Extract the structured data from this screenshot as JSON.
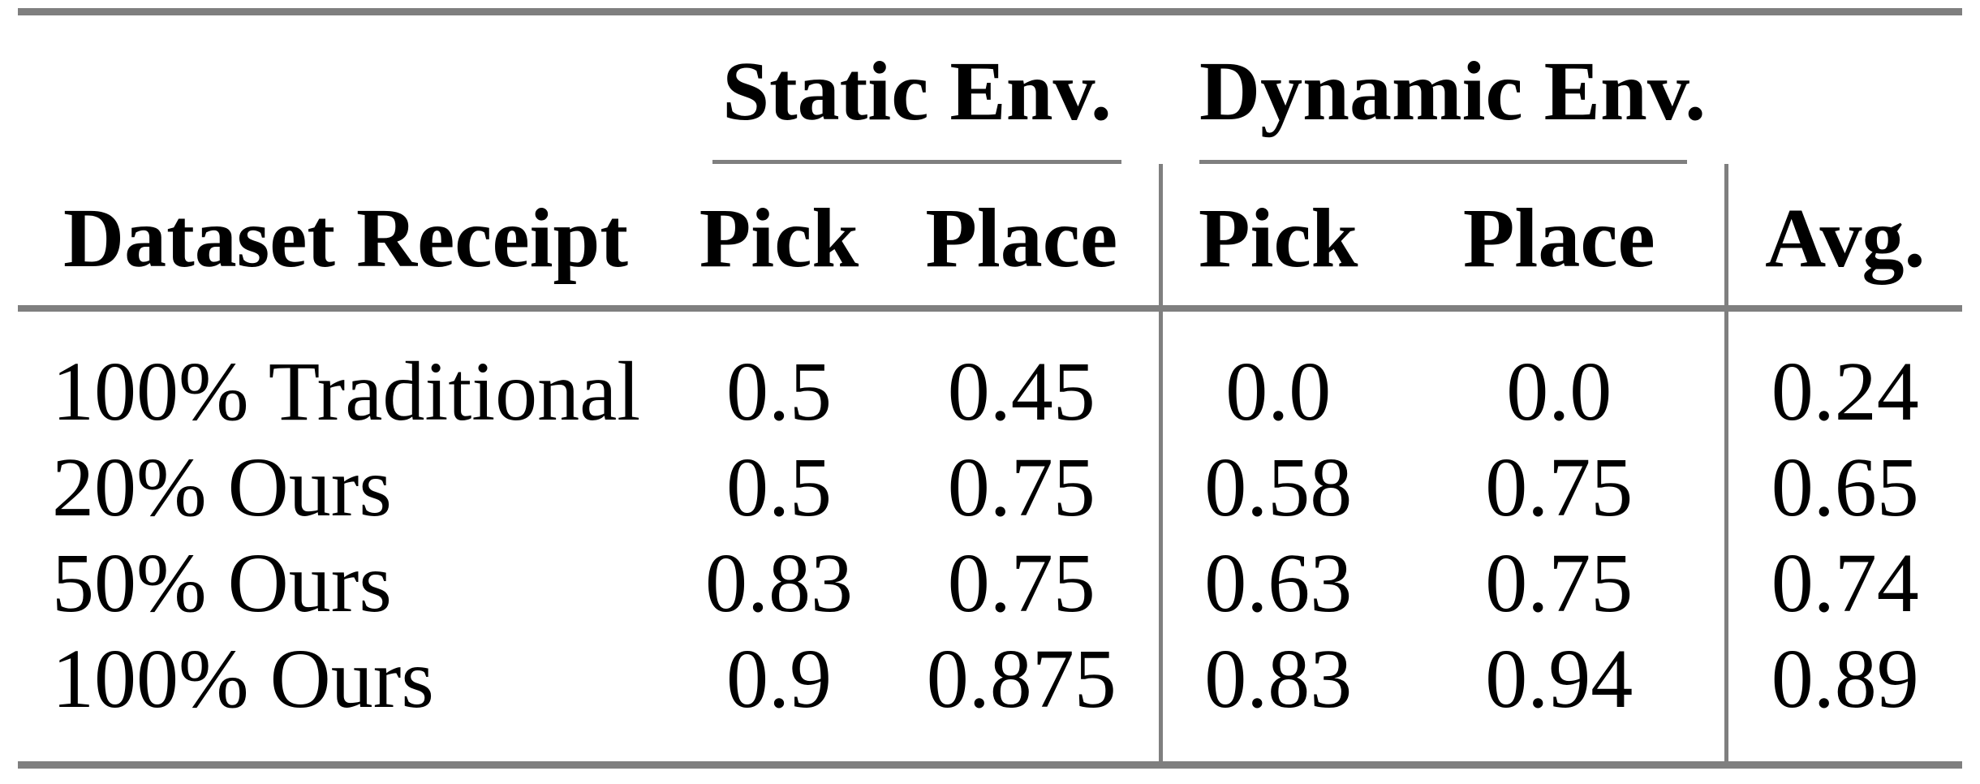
{
  "table": {
    "col_groups": [
      {
        "label": "Static Env."
      },
      {
        "label": "Dynamic Env."
      }
    ],
    "columns": [
      "Dataset Receipt",
      "Pick",
      "Place",
      "Pick",
      "Place",
      "Avg."
    ],
    "rows": [
      {
        "label": "100% Traditional",
        "values": [
          "0.5",
          "0.45",
          "0.0",
          "0.0",
          "0.24"
        ]
      },
      {
        "label": "20% Ours",
        "values": [
          "0.5",
          "0.75",
          "0.58",
          "0.75",
          "0.65"
        ]
      },
      {
        "label": "50% Ours",
        "values": [
          "0.83",
          "0.75",
          "0.63",
          "0.75",
          "0.74"
        ]
      },
      {
        "label": "100% Ours",
        "values": [
          "0.9",
          "0.875",
          "0.83",
          "0.94",
          "0.89"
        ]
      }
    ],
    "colors": {
      "rule_gray": "#7f7f7f",
      "text": "#000000",
      "background": "#ffffff"
    }
  },
  "chart_data": {
    "type": "table",
    "column_groups": [
      "",
      "Static Env.",
      "Static Env.",
      "Dynamic Env.",
      "Dynamic Env.",
      ""
    ],
    "columns": [
      "Dataset Receipt",
      "Pick",
      "Place",
      "Pick",
      "Place",
      "Avg."
    ],
    "rows": [
      [
        "100% Traditional",
        0.5,
        0.45,
        0.0,
        0.0,
        0.24
      ],
      [
        "20% Ours",
        0.5,
        0.75,
        0.58,
        0.75,
        0.65
      ],
      [
        "50% Ours",
        0.83,
        0.75,
        0.63,
        0.75,
        0.74
      ],
      [
        "100% Ours",
        0.9,
        0.875,
        0.83,
        0.94,
        0.89
      ]
    ]
  }
}
